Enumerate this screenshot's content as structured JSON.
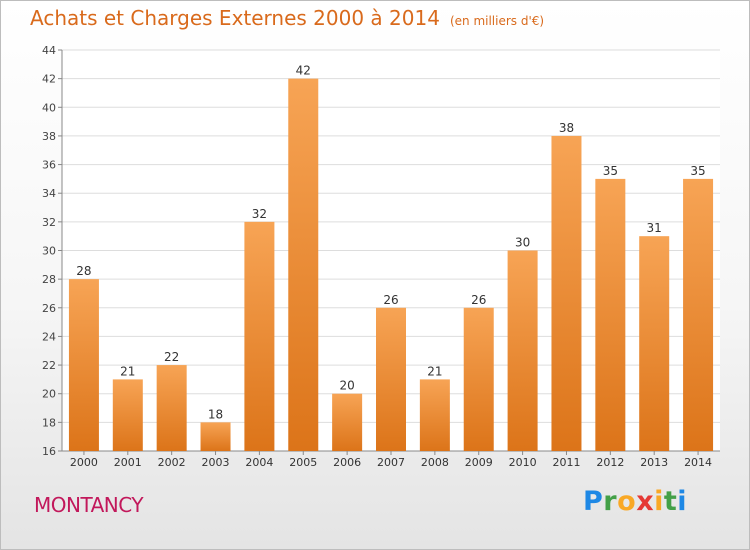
{
  "header": {
    "title": "Achats et Charges Externes 2000 à 2014",
    "unit": "(en milliers d'€)"
  },
  "footer": {
    "place": "MONTANCY",
    "logo": "Proxiti"
  },
  "colors": {
    "bar_top": "#f7a455",
    "bar_bottom": "#dc7419",
    "title": "#d96a1c",
    "place": "#c2185b",
    "grid": "#dddddd"
  },
  "chart_data": {
    "type": "bar",
    "title": "Achats et Charges Externes 2000 à 2014",
    "subtitle": "(en milliers d'€)",
    "categories": [
      "2000",
      "2001",
      "2002",
      "2003",
      "2004",
      "2005",
      "2006",
      "2007",
      "2008",
      "2009",
      "2010",
      "2011",
      "2012",
      "2013",
      "2014"
    ],
    "values": [
      28,
      21,
      22,
      18,
      32,
      42,
      20,
      26,
      21,
      26,
      30,
      38,
      35,
      31,
      35
    ],
    "ylim": [
      16,
      44
    ],
    "yticks": [
      16,
      18,
      20,
      22,
      24,
      26,
      28,
      30,
      32,
      34,
      36,
      38,
      40,
      42,
      44
    ],
    "grid": true,
    "data_labels": true
  }
}
